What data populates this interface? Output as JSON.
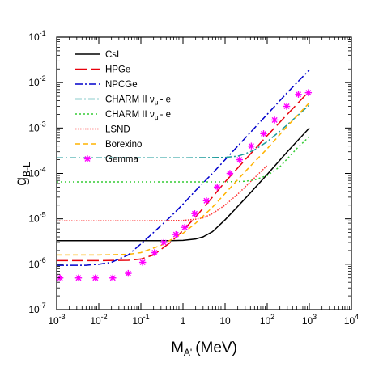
{
  "chart_data": {
    "type": "line",
    "xscale": "log",
    "yscale": "log",
    "xlim": [
      0.001,
      10000
    ],
    "ylim": [
      1e-07,
      0.1
    ],
    "xlabel": {
      "main": "M",
      "sub": "A'",
      "unit": "(MeV)"
    },
    "ylabel": {
      "main": "g",
      "sub": "B-L"
    },
    "x_ticks": [
      {
        "v": 0.001,
        "b": "10",
        "e": "-3"
      },
      {
        "v": 0.01,
        "b": "10",
        "e": "-2"
      },
      {
        "v": 0.1,
        "b": "10",
        "e": "-1"
      },
      {
        "v": 1,
        "b": "1",
        "e": ""
      },
      {
        "v": 10,
        "b": "10",
        "e": ""
      },
      {
        "v": 100,
        "b": "10",
        "e": "2"
      },
      {
        "v": 1000,
        "b": "10",
        "e": "3"
      },
      {
        "v": 10000,
        "b": "10",
        "e": "4"
      }
    ],
    "y_ticks": [
      {
        "v": 1e-07,
        "b": "10",
        "e": "-7"
      },
      {
        "v": 1e-06,
        "b": "10",
        "e": "-6"
      },
      {
        "v": 1e-05,
        "b": "10",
        "e": "-5"
      },
      {
        "v": 0.0001,
        "b": "10",
        "e": "-4"
      },
      {
        "v": 0.001,
        "b": "10",
        "e": "-3"
      },
      {
        "v": 0.01,
        "b": "10",
        "e": "-2"
      },
      {
        "v": 0.1,
        "b": "10",
        "e": "-1"
      }
    ],
    "grid": false,
    "legend_position": "top-left",
    "series": [
      {
        "name": "CsI",
        "legend": {
          "main": "CsI"
        },
        "color": "#000000",
        "dash": "",
        "marker": "none",
        "x": [
          0.001,
          0.01,
          0.1,
          0.5,
          1,
          2,
          3,
          5,
          10,
          30,
          100,
          300,
          1000
        ],
        "y": [
          3.3e-06,
          3.3e-06,
          3.3e-06,
          3.3e-06,
          3.35e-06,
          3.6e-06,
          4e-06,
          5.2e-06,
          9.5e-06,
          2.8e-05,
          9.5e-05,
          0.0003,
          0.001
        ]
      },
      {
        "name": "HPGe",
        "legend": {
          "main": "HPGe"
        },
        "color": "#e8000b",
        "dash": "14,5",
        "marker": "none",
        "x": [
          0.001,
          0.01,
          0.05,
          0.1,
          0.2,
          0.5,
          1,
          2,
          5,
          10,
          30,
          100,
          300,
          1000
        ],
        "y": [
          1.2e-06,
          1.2e-06,
          1.22e-06,
          1.3e-06,
          1.6e-06,
          3e-06,
          5.5e-06,
          1.1e-05,
          3e-05,
          6.5e-05,
          0.0002,
          0.00068,
          0.002,
          0.0065
        ]
      },
      {
        "name": "NPCGe",
        "legend": {
          "main": "NPCGe"
        },
        "color": "#0000cc",
        "dash": "9,3,2,3",
        "marker": "none",
        "x": [
          0.001,
          0.005,
          0.01,
          0.02,
          0.05,
          0.1,
          0.2,
          0.5,
          1,
          2,
          5,
          10,
          30,
          100,
          300,
          1000
        ],
        "y": [
          9.5e-07,
          9.5e-07,
          1e-06,
          1.1e-06,
          1.6e-06,
          2.8e-06,
          5e-06,
          1.1e-05,
          2.1e-05,
          4.2e-05,
          0.0001,
          0.0002,
          0.0006,
          0.002,
          0.006,
          0.019
        ]
      },
      {
        "name": "CHARM II nu_mu - e (1)",
        "legend": {
          "main": "CHARM II ν",
          "sub": "μ",
          "tail": "- e"
        },
        "color": "#1a9a9a",
        "dash": "8,3,2,3",
        "marker": "none",
        "x": [
          0.001,
          1,
          10,
          20,
          30,
          50,
          100,
          200,
          500,
          1000
        ],
        "y": [
          0.00022,
          0.00022,
          0.000225,
          0.00024,
          0.00027,
          0.00033,
          0.0005,
          0.00085,
          0.0018,
          0.0032
        ]
      },
      {
        "name": "CHARM II nu_mu - e (2)",
        "legend": {
          "main": "CHARM II ν",
          "sub": "μ",
          "tail": "- e"
        },
        "color": "#33cc33",
        "dash": "2,3",
        "marker": "none",
        "x": [
          0.001,
          1,
          10,
          30,
          50,
          100,
          200,
          500,
          1000
        ],
        "y": [
          6.5e-05,
          6.5e-05,
          6.5e-05,
          6.7e-05,
          7.2e-05,
          9e-05,
          0.00014,
          0.00035,
          0.00065
        ]
      },
      {
        "name": "LSND",
        "legend": {
          "main": "LSND"
        },
        "color": "#ff3333",
        "dash": "1.5,1.5",
        "marker": "none",
        "x": [
          0.001,
          0.1,
          1,
          2,
          3,
          5,
          10,
          20,
          50,
          100
        ],
        "y": [
          9e-06,
          9e-06,
          9.2e-06,
          9.8e-06,
          1.05e-05,
          1.3e-05,
          2e-05,
          3.5e-05,
          8e-05,
          0.00015
        ]
      },
      {
        "name": "Borexino",
        "legend": {
          "main": "Borexino"
        },
        "color": "#ffb300",
        "dash": "6,4",
        "marker": "none",
        "x": [
          0.001,
          0.01,
          0.05,
          0.1,
          0.3,
          1,
          2,
          5,
          10,
          30,
          100,
          300,
          1000
        ],
        "y": [
          1.6e-06,
          1.6e-06,
          1.65e-06,
          1.8e-06,
          2.6e-06,
          4.8e-06,
          8e-06,
          1.8e-05,
          3.6e-05,
          0.00011,
          0.00035,
          0.0011,
          0.0036
        ]
      },
      {
        "name": "Gemma",
        "legend": {
          "main": "Gemma"
        },
        "color": "#ff00ff",
        "dash": "",
        "marker": "star",
        "x": [
          0.0012,
          0.0033,
          0.0083,
          0.0215,
          0.05,
          0.11,
          0.21,
          0.35,
          0.68,
          1.1,
          1.9,
          3.6,
          6.5,
          13,
          22,
          42,
          82,
          150,
          290,
          550,
          950
        ],
        "y": [
          5e-07,
          5e-07,
          5e-07,
          5e-07,
          6.3e-07,
          1.1e-06,
          1.8e-06,
          3e-06,
          4.5e-06,
          6.5e-06,
          1.3e-05,
          2.5e-05,
          5e-05,
          0.0001,
          0.0002,
          0.0004,
          0.00075,
          0.0015,
          0.003,
          0.0055,
          0.006
        ]
      }
    ]
  }
}
